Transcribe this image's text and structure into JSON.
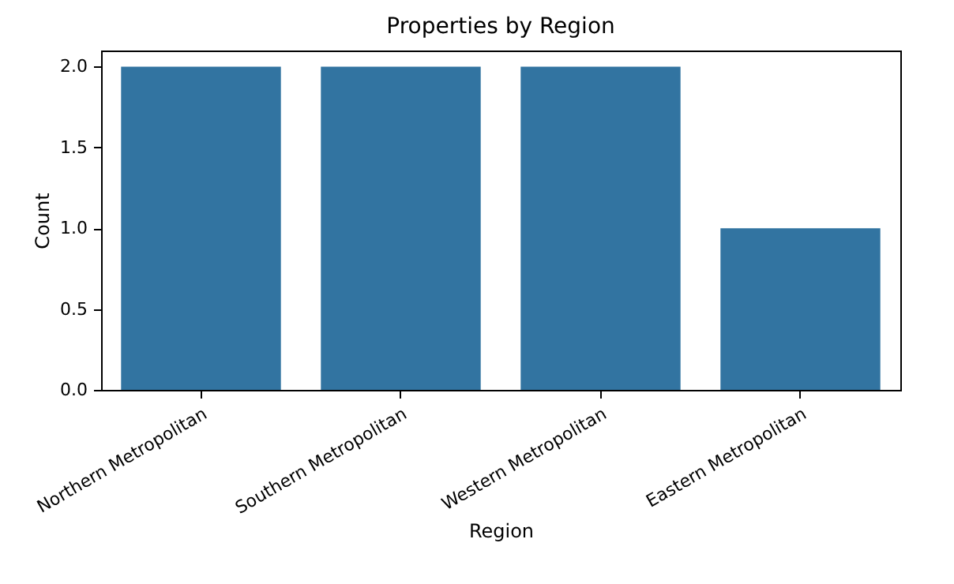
{
  "chart_data": {
    "type": "bar",
    "title": "Properties by Region",
    "xlabel": "Region",
    "ylabel": "Count",
    "categories": [
      "Northern Metropolitan",
      "Southern Metropolitan",
      "Western Metropolitan",
      "Eastern Metropolitan"
    ],
    "values": [
      2,
      2,
      2,
      1
    ],
    "color": "#3274a1",
    "ylim": [
      0,
      2.1
    ],
    "yticks": [
      {
        "value": 0,
        "label": "0.0"
      },
      {
        "value": 0.5,
        "label": "0.5"
      },
      {
        "value": 1,
        "label": "1.0"
      },
      {
        "value": 1.5,
        "label": "1.5"
      },
      {
        "value": 2,
        "label": "2.0"
      }
    ],
    "grid": false
  }
}
